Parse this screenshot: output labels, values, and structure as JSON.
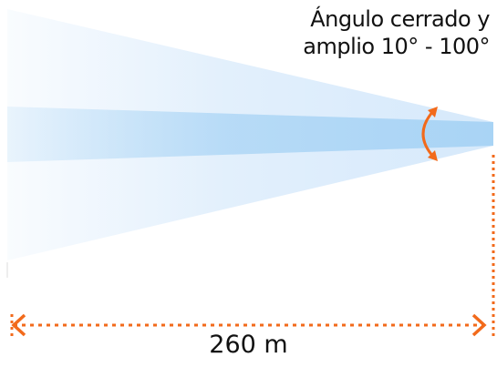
{
  "angle_label": {
    "line1": "Ángulo cerrado y",
    "line2": "amplio 10° - 100°"
  },
  "distance_label": "260 m",
  "colors": {
    "wide_beam": "#d6e9fb",
    "narrow_beam": "#a9d4f5",
    "accent_orange": "#f26a1b",
    "text": "#111111"
  },
  "icons": {
    "angle_adjust": "curved-double-arrow-icon",
    "distance": "dotted-double-arrow-icon"
  }
}
